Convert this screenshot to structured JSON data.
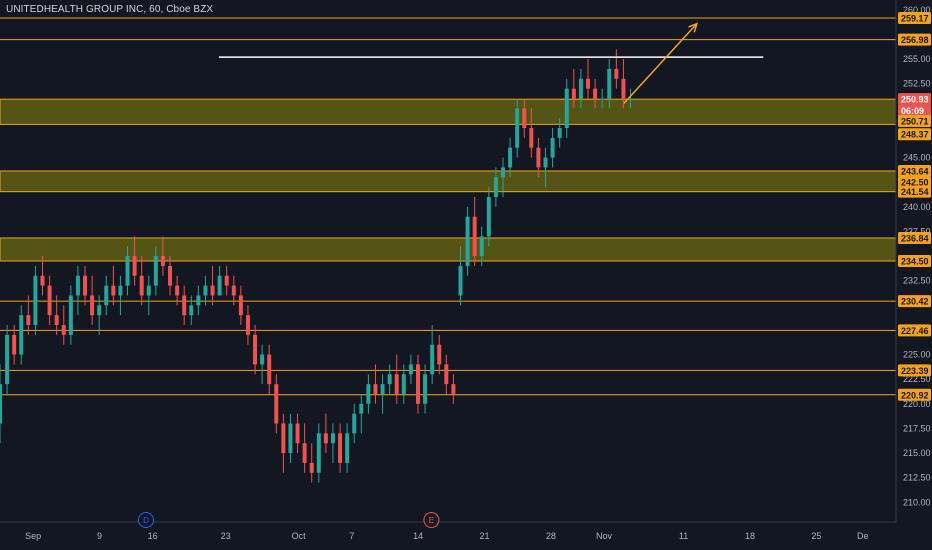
{
  "title": "UNITEDHEALTH GROUP INC, 60, Cboe BZX",
  "colors": {
    "background": "#131722",
    "up": "#26a69a",
    "down": "#ef5350",
    "level": "#f7a21b",
    "zone_fill": "#6b6b12",
    "axis_text": "#b2b5be",
    "resistance_line": "#ffffff"
  },
  "chart_data": {
    "type": "candlestick",
    "symbol": "UNITEDHEALTH GROUP INC",
    "interval": "60",
    "exchange": "Cboe BZX",
    "ylim": [
      208,
      261
    ],
    "y_ticks": [
      {
        "v": 260.0,
        "label": "260.00"
      },
      {
        "v": 255.0,
        "label": "255.00"
      },
      {
        "v": 252.5,
        "label": "252.50"
      },
      {
        "v": 245.0,
        "label": "245.00"
      },
      {
        "v": 240.0,
        "label": "240.00"
      },
      {
        "v": 237.5,
        "label": "237.50"
      },
      {
        "v": 232.5,
        "label": "232.50"
      },
      {
        "v": 225.0,
        "label": "225.00"
      },
      {
        "v": 222.5,
        "label": "222.50"
      },
      {
        "v": 220.0,
        "label": "220.00"
      },
      {
        "v": 217.5,
        "label": "217.50"
      },
      {
        "v": 215.0,
        "label": "215.00"
      },
      {
        "v": 212.5,
        "label": "212.50"
      },
      {
        "v": 210.0,
        "label": "210.00"
      }
    ],
    "x_ticks": [
      {
        "label": "Sep",
        "t": 5
      },
      {
        "label": "9",
        "t": 15
      },
      {
        "label": "16",
        "t": 23
      },
      {
        "label": "23",
        "t": 34
      },
      {
        "label": "Oct",
        "t": 45
      },
      {
        "label": "7",
        "t": 53
      },
      {
        "label": "14",
        "t": 63
      },
      {
        "label": "21",
        "t": 73
      },
      {
        "label": "28",
        "t": 83
      },
      {
        "label": "Nov",
        "t": 91
      },
      {
        "label": "11",
        "t": 103
      },
      {
        "label": "18",
        "t": 113
      },
      {
        "label": "25",
        "t": 123
      },
      {
        "label": "De",
        "t": 130
      }
    ],
    "price_tags": [
      {
        "v": 259.17,
        "label": "259.17"
      },
      {
        "v": 256.98,
        "label": "256.98"
      },
      {
        "v": 250.93,
        "label": "250.93"
      },
      {
        "v": 249.8,
        "label": "06:09"
      },
      {
        "v": 248.71,
        "label": "250.71"
      },
      {
        "v": 247.37,
        "label": "248.37"
      },
      {
        "v": 243.64,
        "label": "243.64"
      },
      {
        "v": 242.5,
        "label": "242.50"
      },
      {
        "v": 241.54,
        "label": "241.54"
      },
      {
        "v": 236.84,
        "label": "236.84"
      },
      {
        "v": 234.5,
        "label": "234.50"
      },
      {
        "v": 230.42,
        "label": "230.42"
      },
      {
        "v": 227.46,
        "label": "227.46"
      },
      {
        "v": 223.39,
        "label": "223.39"
      },
      {
        "v": 220.92,
        "label": "220.92"
      }
    ],
    "levels": [
      259.17,
      256.98,
      230.42,
      227.46,
      223.39,
      220.92
    ],
    "zones": [
      [
        248.37,
        250.93
      ],
      [
        241.54,
        243.64
      ],
      [
        234.5,
        236.84
      ]
    ],
    "resistance": {
      "value": 255.2,
      "t_start": 33,
      "t_end": 115
    },
    "projection": {
      "t0": 94,
      "v0": 250.5,
      "t1": 105,
      "v1": 258.6
    },
    "events": [
      {
        "label": "D",
        "t": 22
      },
      {
        "label": "E",
        "t": 65
      }
    ],
    "ohlc": [
      [
        218,
        224,
        216,
        222
      ],
      [
        222,
        228,
        221,
        227
      ],
      [
        227,
        228,
        224,
        225
      ],
      [
        225,
        230,
        224,
        229
      ],
      [
        229,
        231,
        227,
        228
      ],
      [
        228,
        234,
        227,
        233
      ],
      [
        233,
        235,
        231,
        232
      ],
      [
        232,
        233,
        228,
        229
      ],
      [
        229,
        231,
        227,
        228
      ],
      [
        228,
        230,
        226,
        227
      ],
      [
        227,
        232,
        226,
        231
      ],
      [
        231,
        234,
        229,
        233
      ],
      [
        233,
        234,
        230,
        231
      ],
      [
        231,
        233,
        228,
        229
      ],
      [
        229,
        231,
        227,
        230
      ],
      [
        230,
        233,
        229,
        232
      ],
      [
        232,
        234,
        230,
        231
      ],
      [
        231,
        233,
        229,
        232
      ],
      [
        232,
        236,
        231,
        235
      ],
      [
        235,
        237,
        232,
        233
      ],
      [
        233,
        235,
        230,
        231
      ],
      [
        231,
        233,
        229,
        232
      ],
      [
        232,
        236,
        231,
        235
      ],
      [
        235,
        237,
        233,
        234
      ],
      [
        234,
        235,
        231,
        232
      ],
      [
        232,
        233,
        230,
        231
      ],
      [
        231,
        232,
        228,
        229
      ],
      [
        229,
        231,
        228,
        230
      ],
      [
        230,
        232,
        229,
        231
      ],
      [
        231,
        233,
        230,
        232
      ],
      [
        232,
        234,
        230,
        231
      ],
      [
        231,
        234,
        231,
        233
      ],
      [
        233,
        234,
        231,
        232
      ],
      [
        232,
        233,
        230,
        231
      ],
      [
        231,
        232,
        228,
        229
      ],
      [
        229,
        230,
        226,
        227
      ],
      [
        227,
        228,
        223,
        224
      ],
      [
        224,
        226,
        222,
        225
      ],
      [
        225,
        226,
        221,
        222
      ],
      [
        222,
        223,
        217,
        218
      ],
      [
        218,
        219,
        213,
        215
      ],
      [
        215,
        219,
        214,
        218
      ],
      [
        218,
        219,
        215,
        216
      ],
      [
        216,
        218,
        213,
        214
      ],
      [
        214,
        216,
        212,
        213
      ],
      [
        213,
        218,
        212,
        217
      ],
      [
        217,
        219,
        215,
        216
      ],
      [
        216,
        218,
        214,
        217
      ],
      [
        217,
        218,
        213,
        214
      ],
      [
        214,
        218,
        213,
        217
      ],
      [
        217,
        220,
        216,
        219
      ],
      [
        219,
        221,
        217,
        220
      ],
      [
        220,
        223,
        219,
        222
      ],
      [
        222,
        224,
        220,
        221
      ],
      [
        221,
        223,
        219,
        222
      ],
      [
        222,
        224,
        221,
        223
      ],
      [
        223,
        225,
        220,
        221
      ],
      [
        221,
        224,
        220,
        223
      ],
      [
        223,
        225,
        222,
        224
      ],
      [
        224,
        225,
        219,
        220
      ],
      [
        220,
        224,
        219,
        223
      ],
      [
        223,
        228,
        222,
        226
      ],
      [
        226,
        227,
        223,
        224
      ],
      [
        224,
        225,
        221,
        222
      ],
      [
        222,
        223,
        220,
        221
      ],
      [
        231,
        236,
        230,
        234
      ],
      [
        234,
        240,
        233,
        239
      ],
      [
        239,
        241,
        234,
        235
      ],
      [
        235,
        238,
        234,
        237
      ],
      [
        237,
        242,
        236,
        241
      ],
      [
        241,
        244,
        240,
        243
      ],
      [
        243,
        245,
        241,
        244
      ],
      [
        244,
        247,
        243,
        246
      ],
      [
        246,
        251,
        245,
        250
      ],
      [
        250,
        251,
        247,
        248
      ],
      [
        248,
        250,
        245,
        246
      ],
      [
        246,
        247,
        243,
        244
      ],
      [
        244,
        246,
        242,
        245
      ],
      [
        245,
        248,
        244,
        247
      ],
      [
        247,
        249,
        246,
        248
      ],
      [
        248,
        253,
        247,
        252
      ],
      [
        252,
        254,
        250,
        251
      ],
      [
        251,
        254,
        250,
        253
      ],
      [
        253,
        255,
        251,
        252
      ],
      [
        252,
        253,
        250,
        251
      ],
      [
        251,
        252,
        250,
        251
      ],
      [
        251,
        255,
        250,
        254
      ],
      [
        254,
        256,
        252,
        253
      ],
      [
        253,
        255,
        250,
        251
      ],
      [
        251,
        252,
        250,
        251
      ]
    ]
  }
}
